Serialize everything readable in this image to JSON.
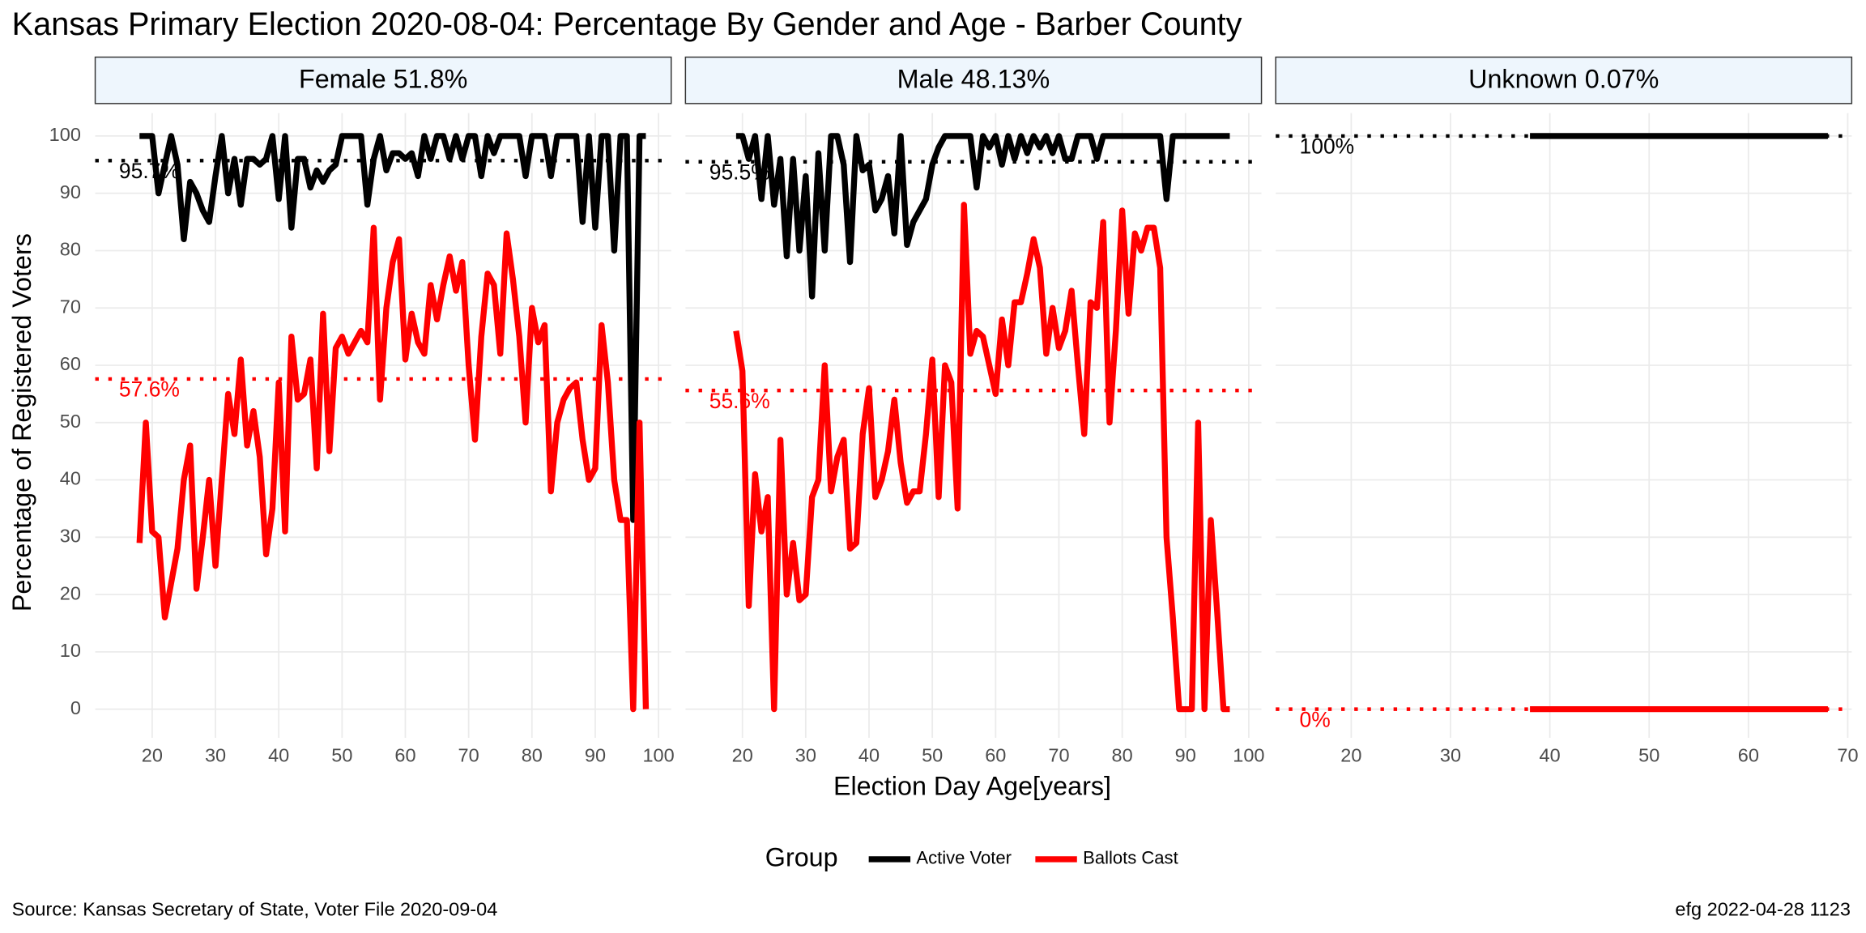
{
  "title": "Kansas Primary Election 2020-08-04:  Percentage By Gender and Age - Barber County",
  "x_label": "Election Day Age[years]",
  "y_label": "Percentage of Registered Voters",
  "legend_title": "Group",
  "source": "Source:  Kansas Secretary of State, Voter File  2020-09-04",
  "credit": "efg 2022-04-28 1123",
  "chart_data": [
    {
      "type": "line",
      "title": "Female 51.8%",
      "x": [
        18,
        19,
        20,
        21,
        22,
        23,
        24,
        25,
        26,
        27,
        28,
        29,
        30,
        31,
        32,
        33,
        34,
        35,
        36,
        37,
        38,
        39,
        40,
        41,
        42,
        43,
        44,
        45,
        46,
        47,
        48,
        49,
        50,
        51,
        52,
        53,
        54,
        55,
        56,
        57,
        58,
        59,
        60,
        61,
        62,
        63,
        64,
        65,
        66,
        67,
        68,
        69,
        70,
        71,
        72,
        73,
        74,
        75,
        76,
        77,
        78,
        79,
        80,
        81,
        82,
        83,
        84,
        85,
        86,
        87,
        88,
        89,
        90,
        91,
        92,
        93,
        94,
        95,
        96,
        97,
        98
      ],
      "series": [
        {
          "name": "Active Voter",
          "color": "#000000",
          "values": [
            100,
            100,
            100,
            90,
            95,
            100,
            95,
            82,
            92,
            90,
            87,
            85,
            93,
            100,
            90,
            96,
            88,
            96,
            96,
            95,
            96,
            100,
            89,
            100,
            84,
            96,
            96,
            91,
            94,
            92,
            94,
            95,
            100,
            100,
            100,
            100,
            88,
            96,
            100,
            94,
            97,
            97,
            96,
            97,
            93,
            100,
            96,
            100,
            100,
            96,
            100,
            96,
            100,
            100,
            93,
            100,
            97,
            100,
            100,
            100,
            100,
            93,
            100,
            100,
            100,
            93,
            100,
            100,
            100,
            100,
            85,
            100,
            84,
            100,
            100,
            80,
            100,
            100,
            33,
            100,
            100
          ]
        },
        {
          "name": "Ballots Cast",
          "color": "#ff0000",
          "values": [
            29,
            50,
            31,
            30,
            16,
            22,
            28,
            40,
            46,
            21,
            30,
            40,
            25,
            40,
            55,
            48,
            61,
            46,
            52,
            44,
            27,
            35,
            57,
            31,
            65,
            54,
            55,
            61,
            42,
            69,
            45,
            63,
            65,
            62,
            64,
            66,
            64,
            84,
            54,
            70,
            78,
            82,
            61,
            69,
            64,
            62,
            74,
            68,
            74,
            79,
            73,
            78,
            60,
            47,
            65,
            76,
            74,
            62,
            83,
            75,
            65,
            50,
            70,
            64,
            67,
            38,
            50,
            54,
            56,
            57,
            47,
            40,
            42,
            67,
            57,
            40,
            33,
            33,
            0,
            50,
            0
          ]
        }
      ],
      "mean_lines": [
        {
          "value": 95.7,
          "label": "95.7%",
          "color": "#000000"
        },
        {
          "value": 57.6,
          "label": "57.6%",
          "color": "#ff0000"
        }
      ],
      "xlim": [
        11,
        102
      ],
      "xticks": [
        20,
        30,
        40,
        50,
        60,
        70,
        80,
        90,
        100
      ],
      "ylim": [
        -5,
        104
      ],
      "yticks": [
        0,
        10,
        20,
        30,
        40,
        50,
        60,
        70,
        80,
        90,
        100
      ],
      "grid": true
    },
    {
      "type": "line",
      "title": "Male 48.13%",
      "x": [
        19,
        20,
        21,
        22,
        23,
        24,
        25,
        26,
        27,
        28,
        29,
        30,
        31,
        32,
        33,
        34,
        35,
        36,
        37,
        38,
        39,
        40,
        41,
        42,
        43,
        44,
        45,
        46,
        47,
        48,
        49,
        50,
        51,
        52,
        53,
        54,
        55,
        56,
        57,
        58,
        59,
        60,
        61,
        62,
        63,
        64,
        65,
        66,
        67,
        68,
        69,
        70,
        71,
        72,
        73,
        74,
        75,
        76,
        77,
        78,
        79,
        80,
        81,
        82,
        83,
        84,
        85,
        86,
        87,
        88,
        89,
        90,
        91,
        92,
        93,
        94,
        95,
        96,
        97
      ],
      "series": [
        {
          "name": "Active Voter",
          "color": "#000000",
          "values": [
            100,
            100,
            96,
            100,
            89,
            100,
            88,
            96,
            79,
            96,
            80,
            93,
            72,
            97,
            80,
            100,
            100,
            95,
            78,
            100,
            94,
            95,
            87,
            89,
            93,
            83,
            100,
            81,
            85,
            87,
            89,
            95,
            98,
            100,
            100,
            100,
            100,
            100,
            91,
            100,
            98,
            100,
            95,
            100,
            96,
            100,
            97,
            100,
            98,
            100,
            97,
            100,
            96,
            96,
            100,
            100,
            100,
            96,
            100,
            100,
            100,
            100,
            100,
            100,
            100,
            100,
            100,
            100,
            89,
            100,
            100,
            100,
            100,
            100,
            100,
            100,
            100,
            100,
            100
          ]
        },
        {
          "name": "Ballots Cast",
          "color": "#ff0000",
          "values": [
            66,
            59,
            18,
            41,
            31,
            37,
            0,
            47,
            20,
            29,
            19,
            20,
            37,
            40,
            60,
            38,
            44,
            47,
            28,
            29,
            48,
            56,
            37,
            40,
            45,
            54,
            43,
            36,
            38,
            38,
            48,
            61,
            37,
            60,
            57,
            35,
            88,
            62,
            66,
            65,
            60,
            55,
            68,
            60,
            71,
            71,
            76,
            82,
            77,
            62,
            70,
            63,
            66,
            73,
            60,
            48,
            71,
            70,
            85,
            50,
            66,
            87,
            69,
            83,
            80,
            84,
            84,
            77,
            30,
            16,
            0,
            0,
            0,
            50,
            0,
            33,
            17,
            0,
            0
          ]
        }
      ],
      "mean_lines": [
        {
          "value": 95.5,
          "label": "95.5%",
          "color": "#000000"
        },
        {
          "value": 55.6,
          "label": "55.6%",
          "color": "#ff0000"
        }
      ],
      "xlim": [
        11,
        102
      ],
      "xticks": [
        20,
        30,
        40,
        50,
        60,
        70,
        80,
        90,
        100
      ],
      "ylim": [
        -5,
        104
      ],
      "yticks": [
        0,
        10,
        20,
        30,
        40,
        50,
        60,
        70,
        80,
        90,
        100
      ],
      "grid": true
    },
    {
      "type": "line",
      "title": "Unknown 0.07%",
      "x": [
        38,
        68
      ],
      "series": [
        {
          "name": "Active Voter",
          "color": "#000000",
          "values": [
            100,
            100
          ]
        },
        {
          "name": "Ballots Cast",
          "color": "#ff0000",
          "values": [
            0,
            0
          ]
        }
      ],
      "mean_lines": [
        {
          "value": 100,
          "label": "100%",
          "color": "#000000"
        },
        {
          "value": 0,
          "label": "0%",
          "color": "#ff0000"
        }
      ],
      "xlim": [
        12.4,
        70.4
      ],
      "xticks": [
        20,
        30,
        40,
        50,
        60,
        70
      ],
      "ylim": [
        -5,
        104
      ],
      "yticks": [
        0,
        10,
        20,
        30,
        40,
        50,
        60,
        70,
        80,
        90,
        100
      ],
      "grid": true
    }
  ]
}
